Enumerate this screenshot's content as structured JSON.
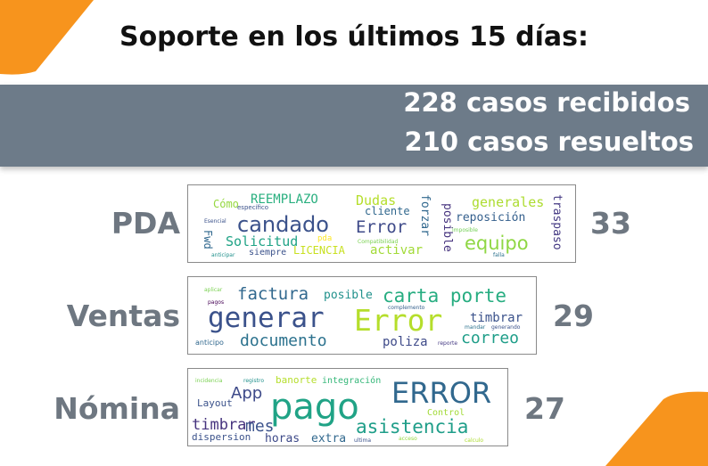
{
  "header": {
    "title": "Soporte en los últimos 15 días:"
  },
  "summary": {
    "received": "228 casos recibidos",
    "resolved": "210 casos resueltos"
  },
  "colors": {
    "accent_orange": "#f7941d",
    "banner_gray": "#6d7b89",
    "label_gray": "#6e7781"
  },
  "rows": [
    {
      "label": "PDA",
      "count": "33",
      "words": {
        "candado": "candado",
        "equipo": "equipo",
        "error": "Error",
        "reemplazo": "REEMPLAZO",
        "dudas": "Dudas",
        "generales": "generales",
        "cliente": "cliente",
        "reposicion": "reposición",
        "solicitud": "Solicitud",
        "licencia": "LICENCIA",
        "activar": "activar",
        "forzar": "forzar",
        "posible": "posible",
        "traspaso": "traspaso",
        "como": "Cómo",
        "especifico": "específico",
        "fwd": "Fwd",
        "siempre": "siempre",
        "pda": "pda",
        "imposible": "imposible",
        "falla": "falla",
        "esencial": "Esencial",
        "anticipar": "anticipar",
        "compatibilidad": "Compatibilidad"
      }
    },
    {
      "label": "Ventas",
      "count": "29",
      "words": {
        "generar": "generar",
        "error": "Error",
        "factura": "factura",
        "posible": "posible",
        "carta_porte": "carta porte",
        "documento": "documento",
        "poliza": "poliza",
        "correo": "correo",
        "timbrar": "timbrar",
        "complemento": "complemento",
        "aplicar": "aplicar",
        "anticipo": "anticipo",
        "mandar": "mandar",
        "reporte": "reporte",
        "pagos": "pagos",
        "generando": "generando"
      }
    },
    {
      "label": "Nómina",
      "count": "27",
      "words": {
        "pago": "pago",
        "error": "ERROR",
        "app": "App",
        "layout": "Layout",
        "timbrar": "timbrar",
        "mes": "mes",
        "asistencia": "asistencia",
        "horas": "horas",
        "extra": "extra",
        "dispersion": "dispersion",
        "banorte": "banorte",
        "integracion": "integración",
        "control": "Control",
        "incidencia": "incidencia",
        "registro": "registro",
        "ultima": "ultima",
        "acceso": "acceso",
        "calculo": "calculo"
      }
    }
  ]
}
